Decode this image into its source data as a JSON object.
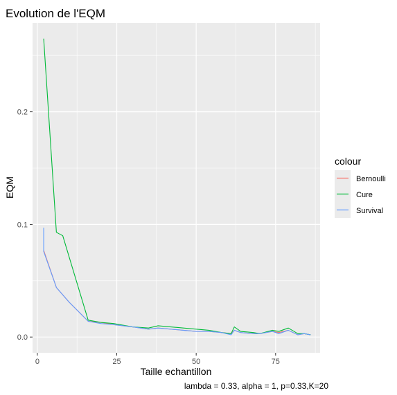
{
  "chart_data": {
    "type": "line",
    "title": "Evolution de l'EQM",
    "xlabel": "Taille echantillon",
    "ylabel": "EQM",
    "caption": "lambda = 0.33, alpha = 1, p=0.33,K=20",
    "xlim": [
      -1.5,
      89
    ],
    "ylim": [
      -0.014,
      0.279
    ],
    "x_ticks": [
      0,
      25,
      50,
      75
    ],
    "y_ticks": [
      0.0,
      0.1,
      0.2
    ],
    "x_tick_labels": [
      "0",
      "25",
      "50",
      "75"
    ],
    "y_tick_labels": [
      "0.0",
      "0.1",
      "0.2"
    ],
    "grid": true,
    "legend": {
      "title": "colour",
      "position": "right",
      "entries": [
        "Bernoulli",
        "Cure",
        "Survival"
      ]
    },
    "colors": {
      "Bernoulli": "#F8766D",
      "Cure": "#00BA38",
      "Survival": "#619CFF",
      "panel": "#EBEBEB",
      "grid": "#FFFFFF"
    },
    "series": [
      {
        "name": "Bernoulli",
        "x": [
          2,
          6,
          10,
          16,
          20,
          24,
          30,
          35,
          38,
          42,
          46,
          50,
          54,
          58,
          61,
          62,
          64,
          68,
          70,
          74,
          76,
          79,
          82,
          84,
          86
        ],
        "y": [
          0.077,
          0.044,
          0.031,
          0.014,
          0.013,
          0.011,
          0.009,
          0.007,
          0.008,
          0.007,
          0.006,
          0.005,
          0.005,
          0.004,
          0.003,
          0.006,
          0.004,
          0.003,
          0.003,
          0.005,
          0.004,
          0.006,
          0.002,
          0.003,
          0.002
        ]
      },
      {
        "name": "Cure",
        "x": [
          2,
          6,
          8,
          16,
          20,
          24,
          30,
          35,
          38,
          42,
          46,
          50,
          54,
          58,
          61,
          62,
          64,
          68,
          70,
          74,
          76,
          79,
          82,
          84,
          86
        ],
        "y": [
          0.265,
          0.093,
          0.09,
          0.015,
          0.013,
          0.012,
          0.009,
          0.008,
          0.01,
          0.009,
          0.008,
          0.007,
          0.006,
          0.004,
          0.003,
          0.009,
          0.005,
          0.004,
          0.003,
          0.006,
          0.005,
          0.008,
          0.003,
          0.003,
          0.002
        ]
      },
      {
        "name": "Survival",
        "x": [
          2,
          2,
          6,
          10,
          16,
          20,
          24,
          30,
          35,
          38,
          42,
          46,
          50,
          54,
          58,
          61,
          62,
          64,
          68,
          70,
          74,
          76,
          79,
          82,
          84,
          86
        ],
        "y": [
          0.097,
          0.076,
          0.044,
          0.031,
          0.014,
          0.012,
          0.011,
          0.009,
          0.007,
          0.008,
          0.007,
          0.006,
          0.005,
          0.005,
          0.004,
          0.002,
          0.006,
          0.004,
          0.003,
          0.003,
          0.005,
          0.003,
          0.006,
          0.002,
          0.003,
          0.002
        ]
      }
    ]
  }
}
